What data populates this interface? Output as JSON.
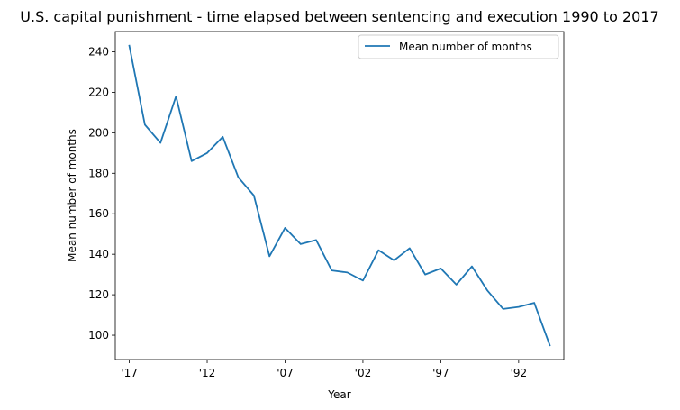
{
  "chart_data": {
    "type": "line",
    "title": "U.S. capital punishment - time elapsed between sentencing and execution 1990 to 2017",
    "xlabel": "Year",
    "ylabel": "Mean number of months",
    "x": [
      2017,
      2016,
      2015,
      2014,
      2013,
      2012,
      2011,
      2010,
      2009,
      2008,
      2007,
      2006,
      2005,
      2004,
      2003,
      2002,
      2001,
      2000,
      1999,
      1998,
      1997,
      1996,
      1995,
      1994,
      1993,
      1992,
      1991,
      1990
    ],
    "x_tick_values": [
      2017,
      2012,
      2007,
      2002,
      1997,
      1992
    ],
    "x_tick_labels": [
      "'17",
      "'12",
      "'07",
      "'02",
      "'97",
      "'92"
    ],
    "xlim": [
      2017.9,
      1989.1
    ],
    "y_ticks": [
      100,
      120,
      140,
      160,
      180,
      200,
      220,
      240
    ],
    "ylim": [
      88,
      250
    ],
    "series": [
      {
        "name": "Mean number of months",
        "color": "#1f77b4",
        "values": [
          243,
          204,
          195,
          218,
          186,
          190,
          198,
          178,
          169,
          139,
          153,
          145,
          147,
          132,
          131,
          127,
          142,
          137,
          143,
          130,
          133,
          125,
          134,
          122,
          113,
          114,
          116,
          95
        ]
      }
    ],
    "legend": "top-right",
    "grid": false
  }
}
